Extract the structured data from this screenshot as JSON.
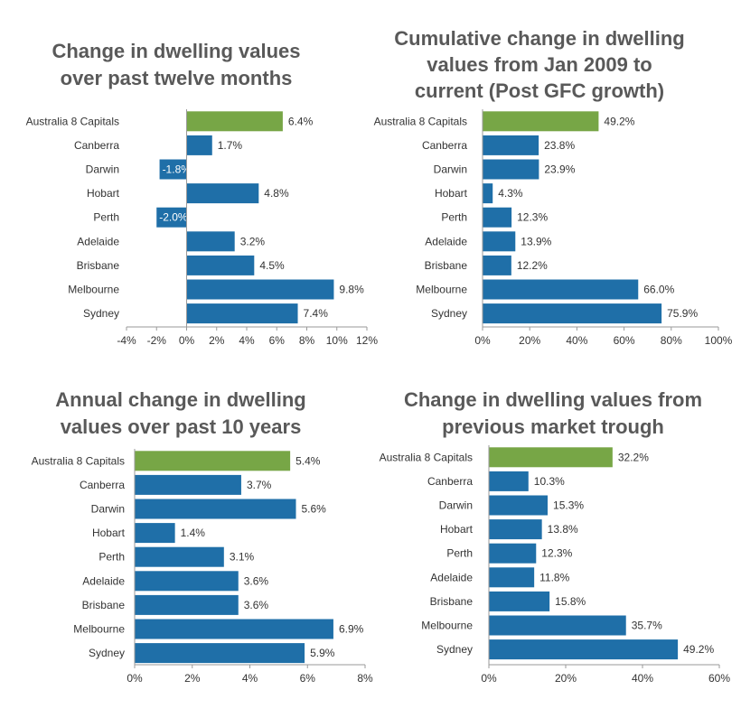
{
  "colors": {
    "highlight": "#77a646",
    "bar": "#1f6fa8"
  },
  "chart_data": [
    {
      "type": "bar",
      "orientation": "horizontal",
      "title": [
        "Change in dwelling values",
        "over past twelve months"
      ],
      "categories": [
        "Australia  8 Capitals",
        "Canberra",
        "Darwin",
        "Hobart",
        "Perth",
        "Adelaide",
        "Brisbane",
        "Melbourne",
        "Sydney"
      ],
      "values": [
        6.4,
        1.7,
        -1.8,
        4.8,
        -2.0,
        3.2,
        4.5,
        9.8,
        7.4
      ],
      "value_labels": [
        "6.4%",
        "1.7%",
        "-1.8%",
        "4.8%",
        "-2.0%",
        "3.2%",
        "4.5%",
        "9.8%",
        "7.4%"
      ],
      "xlim": [
        -4,
        12
      ],
      "xticks": [
        -4,
        -2,
        0,
        2,
        4,
        6,
        8,
        10,
        12
      ],
      "xtick_labels": [
        "-4%",
        "-2%",
        "0%",
        "2%",
        "4%",
        "6%",
        "8%",
        "10%",
        "12%"
      ],
      "highlight_index": 0,
      "grid": false
    },
    {
      "type": "bar",
      "orientation": "horizontal",
      "title": [
        "Cumulative change in dwelling",
        "values from Jan 2009 to",
        "current (Post GFC growth)"
      ],
      "categories": [
        "Australia  8 Capitals",
        "Canberra",
        "Darwin",
        "Hobart",
        "Perth",
        "Adelaide",
        "Brisbane",
        "Melbourne",
        "Sydney"
      ],
      "values": [
        49.2,
        23.8,
        23.9,
        4.3,
        12.3,
        13.9,
        12.2,
        66.0,
        75.9
      ],
      "value_labels": [
        "49.2%",
        "23.8%",
        "23.9%",
        "4.3%",
        "12.3%",
        "13.9%",
        "12.2%",
        "66.0%",
        "75.9%"
      ],
      "xlim": [
        0,
        100
      ],
      "xticks": [
        0,
        20,
        40,
        60,
        80,
        100
      ],
      "xtick_labels": [
        "0%",
        "20%",
        "40%",
        "60%",
        "80%",
        "100%"
      ],
      "highlight_index": 0,
      "grid": false
    },
    {
      "type": "bar",
      "orientation": "horizontal",
      "title": [
        "Annual change in dwelling",
        "values over past 10 years"
      ],
      "categories": [
        "Australia  8 Capitals",
        "Canberra",
        "Darwin",
        "Hobart",
        "Perth",
        "Adelaide",
        "Brisbane",
        "Melbourne",
        "Sydney"
      ],
      "values": [
        5.4,
        3.7,
        5.6,
        1.4,
        3.1,
        3.6,
        3.6,
        6.9,
        5.9
      ],
      "value_labels": [
        "5.4%",
        "3.7%",
        "5.6%",
        "1.4%",
        "3.1%",
        "3.6%",
        "3.6%",
        "6.9%",
        "5.9%"
      ],
      "xlim": [
        0,
        8
      ],
      "xticks": [
        0,
        2,
        4,
        6,
        8
      ],
      "xtick_labels": [
        "0%",
        "2%",
        "4%",
        "6%",
        "8%"
      ],
      "highlight_index": 0,
      "grid": false
    },
    {
      "type": "bar",
      "orientation": "horizontal",
      "title": [
        "Change in dwelling values from",
        "previous market trough"
      ],
      "categories": [
        "Australia  8 Capitals",
        "Canberra",
        "Darwin",
        "Hobart",
        "Perth",
        "Adelaide",
        "Brisbane",
        "Melbourne",
        "Sydney"
      ],
      "values": [
        32.2,
        10.3,
        15.3,
        13.8,
        12.3,
        11.8,
        15.8,
        35.7,
        49.2
      ],
      "value_labels": [
        "32.2%",
        "10.3%",
        "15.3%",
        "13.8%",
        "12.3%",
        "11.8%",
        "15.8%",
        "35.7%",
        "49.2%"
      ],
      "xlim": [
        0,
        60
      ],
      "xticks": [
        0,
        20,
        40,
        60
      ],
      "xtick_labels": [
        "0%",
        "20%",
        "40%",
        "60%"
      ],
      "highlight_index": 0,
      "grid": false
    }
  ]
}
